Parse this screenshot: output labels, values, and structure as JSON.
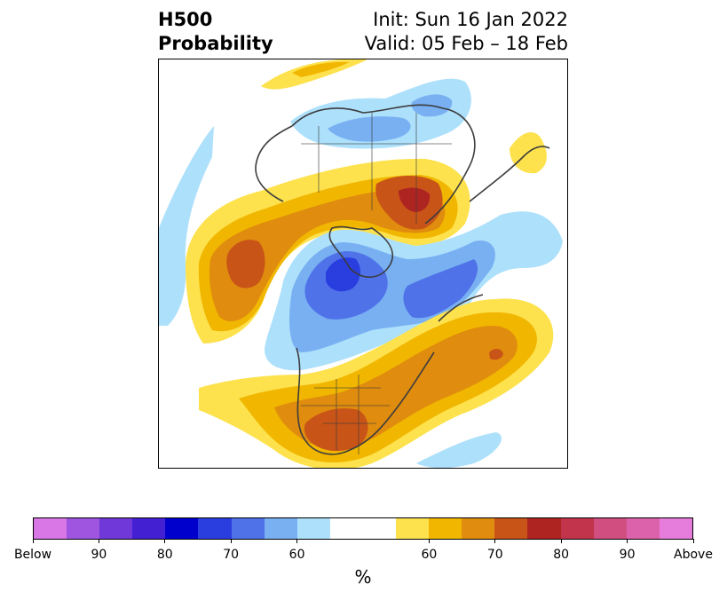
{
  "header": {
    "title_line1": "H500",
    "title_line2": "Probability",
    "init_label": "Init: Sun 16 Jan 2022",
    "valid_label": "Valid: 05 Feb – 18 Feb"
  },
  "map": {
    "projection": "north-polar-stereographic",
    "field": "500 hPa height tercile probability",
    "legend_placement": "bottom"
  },
  "colorbar": {
    "unit": "%",
    "colors": [
      "#d977e6",
      "#9f55e0",
      "#7038d8",
      "#4321d2",
      "#0000cc",
      "#2a3ee0",
      "#4f72e8",
      "#78b0f2",
      "#ade0fb",
      "#ffffff",
      "#ffffff",
      "#fde24e",
      "#f1b700",
      "#e08c0e",
      "#c95418",
      "#ae2421",
      "#c1344c",
      "#d04e80",
      "#dd62ac",
      "#e67cdb"
    ],
    "ticks": [
      "Below",
      "90",
      "80",
      "70",
      "60",
      "60",
      "70",
      "80",
      "90",
      "Above"
    ]
  }
}
